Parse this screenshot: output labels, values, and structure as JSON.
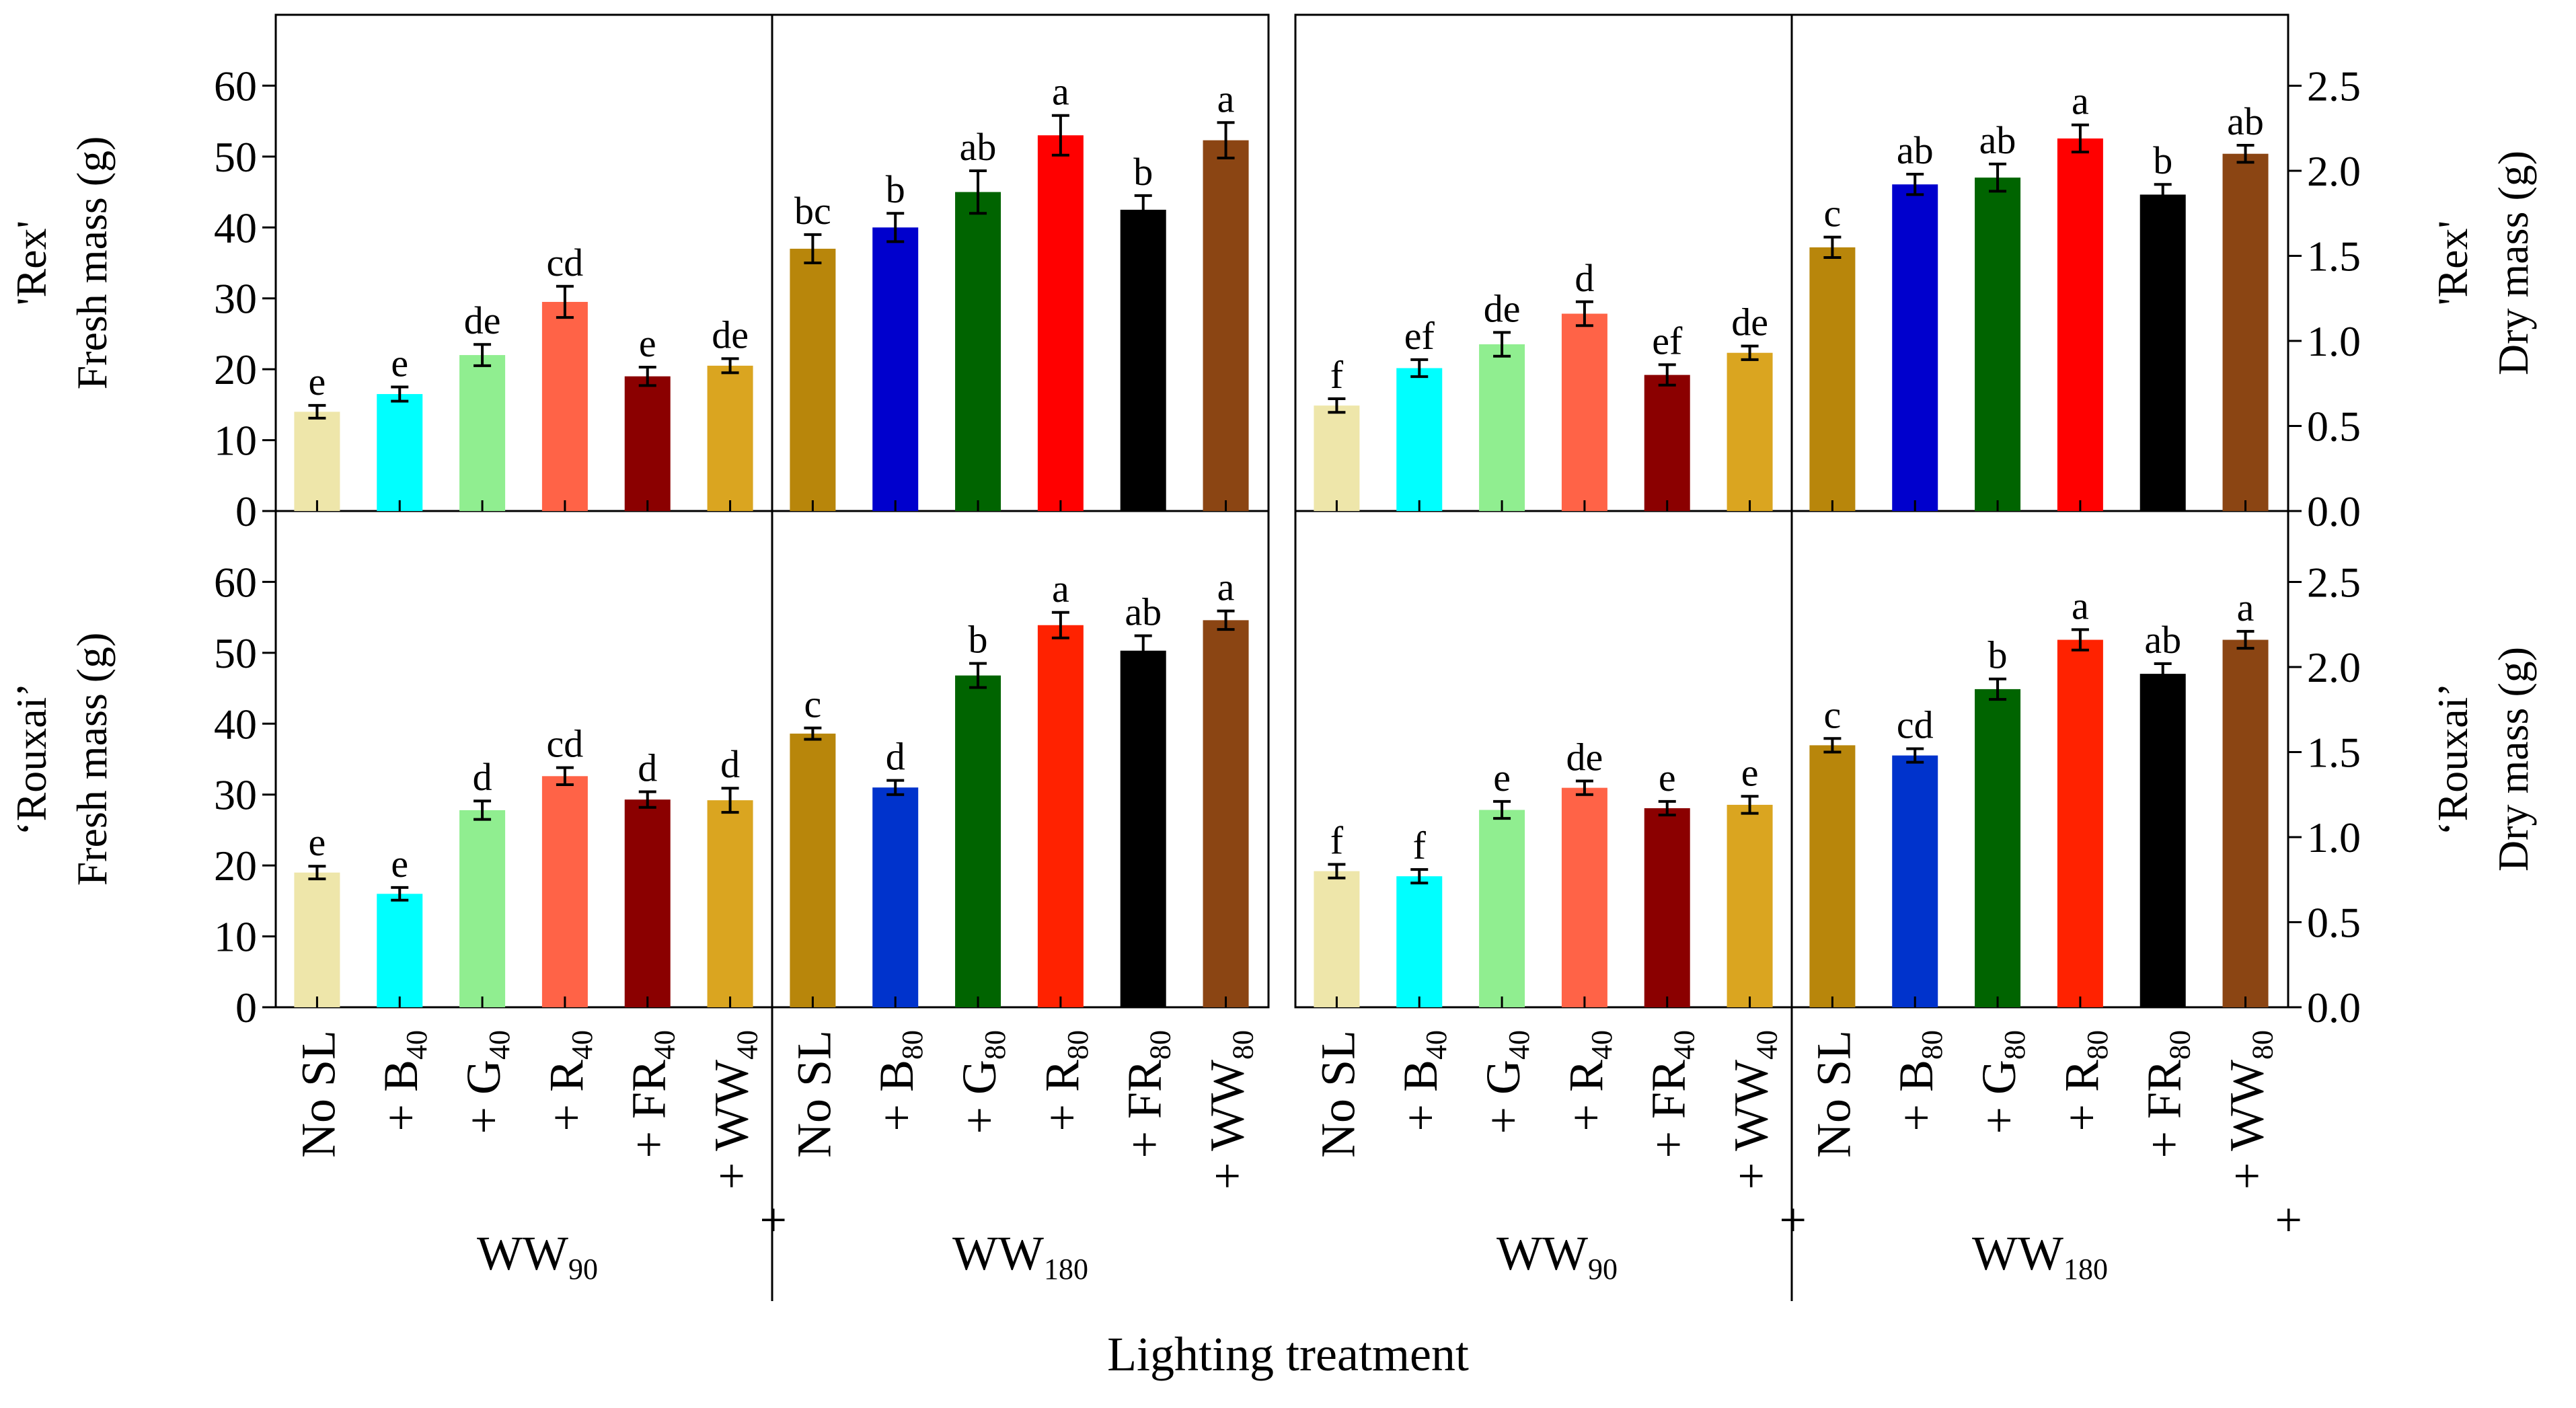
{
  "chart_data": {
    "type": "bar",
    "xlabel": "Lighting treatment",
    "group_labels": [
      {
        "base": "WW",
        "sub": "90"
      },
      {
        "base": "WW",
        "sub": "180"
      },
      {
        "base": "WW",
        "sub": "90"
      },
      {
        "base": "WW",
        "sub": "180"
      }
    ],
    "categories": [
      {
        "pre": "No SL",
        "sub": "",
        "post": ""
      },
      {
        "pre": "+ B",
        "sub": "40",
        "post": ""
      },
      {
        "pre": "+ G",
        "sub": "40",
        "post": ""
      },
      {
        "pre": "+ R",
        "sub": "40",
        "post": ""
      },
      {
        "pre": "+ FR",
        "sub": "40",
        "post": ""
      },
      {
        "pre": "+ WW",
        "sub": "40",
        "post": "+"
      },
      {
        "pre": "No SL",
        "sub": "",
        "post": ""
      },
      {
        "pre": "+ B",
        "sub": "80",
        "post": ""
      },
      {
        "pre": "+ G",
        "sub": "80",
        "post": ""
      },
      {
        "pre": "+ R",
        "sub": "80",
        "post": ""
      },
      {
        "pre": "+ FR",
        "sub": "80",
        "post": ""
      },
      {
        "pre": "+ WW",
        "sub": "80",
        "post": ""
      },
      {
        "pre": "No SL",
        "sub": "",
        "post": ""
      },
      {
        "pre": "+ B",
        "sub": "40",
        "post": ""
      },
      {
        "pre": "+ G",
        "sub": "40",
        "post": ""
      },
      {
        "pre": "+ R",
        "sub": "40",
        "post": ""
      },
      {
        "pre": "+ FR",
        "sub": "40",
        "post": ""
      },
      {
        "pre": "+ WW",
        "sub": "40",
        "post": "+"
      },
      {
        "pre": "No SL",
        "sub": "",
        "post": ""
      },
      {
        "pre": "+ B",
        "sub": "80",
        "post": ""
      },
      {
        "pre": "+ G",
        "sub": "80",
        "post": ""
      },
      {
        "pre": "+ R",
        "sub": "80",
        "post": ""
      },
      {
        "pre": "+ FR",
        "sub": "80",
        "post": ""
      },
      {
        "pre": "+ WW",
        "sub": "80",
        "post": "+"
      }
    ],
    "colors_row1": [
      "#EEE6AA",
      "#00FFFF",
      "#90EE90",
      "#FF6347",
      "#8B0000",
      "#DAA520",
      "#B8860B",
      "#0000CD",
      "#006400",
      "#FF0000",
      "#000000",
      "#8B4513"
    ],
    "colors_row2": [
      "#EEE6AA",
      "#00FFFF",
      "#90EE90",
      "#FF6347",
      "#8B0000",
      "#DAA520",
      "#B8860B",
      "#0033CC",
      "#006400",
      "#FF2200",
      "#000000",
      "#8B4513"
    ],
    "panels": [
      {
        "name": "rex-fresh",
        "row": 0,
        "col": 0,
        "axis_side": "left",
        "ylabel_lines": [
          "'Rex'",
          "Fresh mass (g)"
        ],
        "ylim": [
          0,
          70
        ],
        "yticks": [
          "0",
          "10",
          "20",
          "30",
          "40",
          "50",
          "60"
        ],
        "ytick_values": [
          0,
          10,
          20,
          30,
          40,
          50,
          60
        ],
        "values": [
          14,
          16.5,
          22,
          29.5,
          19,
          20.5,
          37,
          40,
          45,
          53,
          42.5,
          52.3
        ],
        "errors": [
          0.9,
          1,
          1.5,
          2.2,
          1.3,
          1,
          2,
          2,
          3,
          2.8,
          2,
          2.5
        ],
        "letters": [
          "e",
          "e",
          "de",
          "cd",
          "e",
          "de",
          "bc",
          "b",
          "ab",
          "a",
          "b",
          "a"
        ]
      },
      {
        "name": "rex-dry",
        "row": 0,
        "col": 1,
        "axis_side": "right",
        "ylabel_lines": [
          "'Rex'",
          "Dry mass (g)"
        ],
        "ylim": [
          0,
          2.917
        ],
        "yticks": [
          "0.0",
          "0.5",
          "1.0",
          "1.5",
          "2.0",
          "2.5"
        ],
        "ytick_values": [
          0,
          0.5,
          1,
          1.5,
          2,
          2.5
        ],
        "values": [
          0.62,
          0.84,
          0.98,
          1.16,
          0.8,
          0.93,
          1.55,
          1.92,
          1.96,
          2.19,
          1.86,
          2.1
        ],
        "errors": [
          0.04,
          0.05,
          0.07,
          0.07,
          0.06,
          0.04,
          0.06,
          0.06,
          0.08,
          0.08,
          0.06,
          0.05
        ],
        "letters": [
          "f",
          "ef",
          "de",
          "d",
          "ef",
          "de",
          "c",
          "ab",
          "ab",
          "a",
          "b",
          "ab"
        ]
      },
      {
        "name": "rouxai-fresh",
        "row": 1,
        "col": 0,
        "axis_side": "left",
        "ylabel_lines": [
          "‘Rouxai’",
          "Fresh mass (g)"
        ],
        "ylim": [
          0,
          70
        ],
        "yticks": [
          "0",
          "10",
          "20",
          "30",
          "40",
          "50",
          "60"
        ],
        "ytick_values": [
          0,
          10,
          20,
          30,
          40,
          50,
          60
        ],
        "values": [
          19,
          16,
          27.8,
          32.6,
          29.3,
          29.2,
          38.6,
          31,
          46.8,
          53.9,
          50.3,
          54.6
        ],
        "errors": [
          0.9,
          0.9,
          1.3,
          1.2,
          1.1,
          1.7,
          0.8,
          1,
          1.7,
          1.8,
          2.1,
          1.3
        ],
        "letters": [
          "e",
          "e",
          "d",
          "cd",
          "d",
          "d",
          "c",
          "d",
          "b",
          "a",
          "ab",
          "a"
        ]
      },
      {
        "name": "rouxai-dry",
        "row": 1,
        "col": 1,
        "axis_side": "right",
        "ylabel_lines": [
          "‘Rouxai’",
          "Dry mass (g)"
        ],
        "ylim": [
          0,
          2.917
        ],
        "yticks": [
          "0.0",
          "0.5",
          "1.0",
          "1.5",
          "2.0",
          "2.5"
        ],
        "ytick_values": [
          0,
          0.5,
          1,
          1.5,
          2,
          2.5
        ],
        "values": [
          0.8,
          0.77,
          1.16,
          1.29,
          1.17,
          1.19,
          1.54,
          1.48,
          1.87,
          2.16,
          1.96,
          2.16
        ],
        "errors": [
          0.04,
          0.04,
          0.05,
          0.04,
          0.04,
          0.05,
          0.04,
          0.04,
          0.06,
          0.06,
          0.06,
          0.05
        ],
        "letters": [
          "f",
          "f",
          "e",
          "de",
          "e",
          "e",
          "c",
          "cd",
          "b",
          "a",
          "ab",
          "a"
        ]
      }
    ]
  }
}
